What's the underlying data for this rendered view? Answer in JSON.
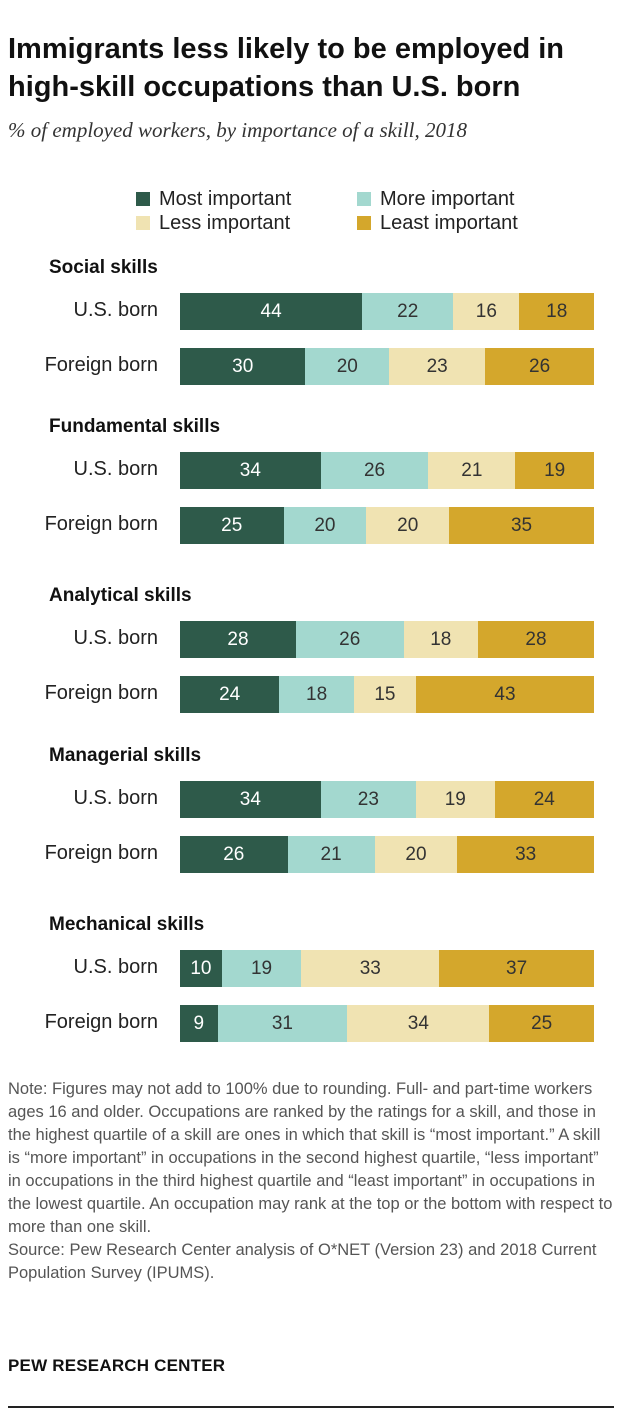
{
  "header": {
    "title": "Immigrants less likely to be employed in high-skill occupations than U.S. born",
    "subtitle": "% of employed workers, by importance of a skill, 2018"
  },
  "chart_data": {
    "type": "bar",
    "orientation": "horizontal",
    "stacked": true,
    "title": "Immigrants less likely to be employed in high-skill occupations than U.S. born",
    "subtitle": "% of employed workers, by importance of a skill, 2018",
    "xlim": [
      0,
      100
    ],
    "legend_position": "top",
    "grid": false,
    "legend": [
      {
        "name": "Most important",
        "color": "#2e5a4a"
      },
      {
        "name": "More important",
        "color": "#a3d8cf"
      },
      {
        "name": "Less important",
        "color": "#f0e3b2"
      },
      {
        "name": "Least important",
        "color": "#d4a72c"
      }
    ],
    "groups": [
      {
        "title": "Social skills",
        "rows": [
          {
            "label": "U.S. born",
            "values": [
              44,
              22,
              16,
              18
            ]
          },
          {
            "label": "Foreign born",
            "values": [
              30,
              20,
              23,
              26
            ]
          }
        ]
      },
      {
        "title": "Fundamental skills",
        "rows": [
          {
            "label": "U.S. born",
            "values": [
              34,
              26,
              21,
              19
            ]
          },
          {
            "label": "Foreign born",
            "values": [
              25,
              20,
              20,
              35
            ]
          }
        ]
      },
      {
        "title": "Analytical skills",
        "rows": [
          {
            "label": "U.S. born",
            "values": [
              28,
              26,
              18,
              28
            ]
          },
          {
            "label": "Foreign born",
            "values": [
              24,
              18,
              15,
              43
            ]
          }
        ]
      },
      {
        "title": "Managerial skills",
        "rows": [
          {
            "label": "U.S. born",
            "values": [
              34,
              23,
              19,
              24
            ]
          },
          {
            "label": "Foreign born",
            "values": [
              26,
              21,
              20,
              33
            ]
          }
        ]
      },
      {
        "title": "Mechanical skills",
        "rows": [
          {
            "label": "U.S. born",
            "values": [
              10,
              19,
              33,
              37
            ]
          },
          {
            "label": "Foreign born",
            "values": [
              9,
              31,
              34,
              25
            ]
          }
        ]
      }
    ]
  },
  "note": {
    "text": "Note: Figures may not add to 100% due to rounding. Full- and part-time workers ages 16 and older. Occupations are ranked by the ratings for a skill, and those in the highest quartile of a skill are ones in which that skill is “most important.” A skill is “more important” in occupations in the second highest quartile, “less important” in occupations in the third highest quartile and “least important” in occupations in the lowest quartile. An occupation may rank at the top or the bottom with respect to more than one skill.",
    "source": "Source: Pew Research Center analysis of O*NET (Version 23) and 2018 Current Population Survey (IPUMS)."
  },
  "footer": {
    "brand": "PEW RESEARCH CENTER"
  }
}
